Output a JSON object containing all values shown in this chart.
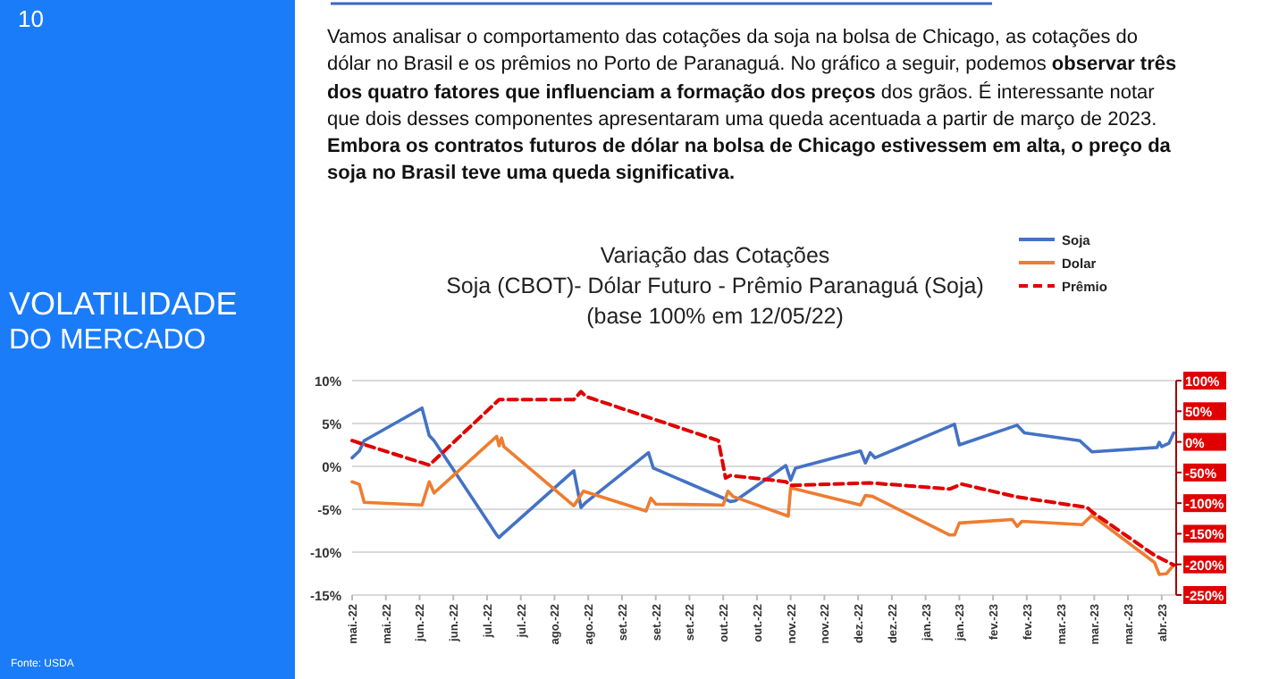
{
  "chart_data": {
    "type": "line",
    "title": "Variação das Cotações",
    "subtitle": "Soja (CBOT)- Dólar Futuro - Prêmio Paranaguá (Soja)\n(base 100% em 12/05/22)",
    "annotations": [
      "10",
      "VOLATILIDADE",
      "DO MERCADO",
      "Fonte: USDA",
      "Vamos analisar o comportamento das cotações da soja na bolsa de Chicago, as cotações do dólar no Brasil e os prêmios no Porto de Paranaguá. No gráfico a seguir, podemos ",
      "observar três dos quatro fatores que influenciam a formação dos preços",
      " dos grãos. É interessante notar que dois desses componentes apresentaram uma queda acentuada a partir de março de 2023. ",
      "Embora os contratos futuros de dólar na bolsa de Chicago estivessem em alta, o preço da soja no Brasil teve uma queda significativa."
    ],
    "xlim": [
      "2022-05-12",
      "2023-04-19"
    ],
    "xticks": [
      {
        "value": "2022-05-12",
        "label": "mai.-22"
      },
      {
        "value": "2022-05-26",
        "label": "mai.-22"
      },
      {
        "value": "2022-06-09",
        "label": "jun.-22"
      },
      {
        "value": "2022-06-23",
        "label": "jun.-22"
      },
      {
        "value": "2022-07-07",
        "label": "jul.-22"
      },
      {
        "value": "2022-07-21",
        "label": "jul.-22"
      },
      {
        "value": "2022-08-04",
        "label": "ago.-22"
      },
      {
        "value": "2022-08-18",
        "label": "ago.-22"
      },
      {
        "value": "2022-09-01",
        "label": "set.-22"
      },
      {
        "value": "2022-09-15",
        "label": "set.-22"
      },
      {
        "value": "2022-09-29",
        "label": "set.-22"
      },
      {
        "value": "2022-10-13",
        "label": "out.-22"
      },
      {
        "value": "2022-10-27",
        "label": "out.-22"
      },
      {
        "value": "2022-11-10",
        "label": "nov.-22"
      },
      {
        "value": "2022-11-24",
        "label": "nov.-22"
      },
      {
        "value": "2022-12-08",
        "label": "dez.-22"
      },
      {
        "value": "2022-12-22",
        "label": "dez.-22"
      },
      {
        "value": "2023-01-05",
        "label": "jan.-23"
      },
      {
        "value": "2023-01-19",
        "label": "jan.-23"
      },
      {
        "value": "2023-02-02",
        "label": "fev.-23"
      },
      {
        "value": "2023-02-16",
        "label": "fev.-23"
      },
      {
        "value": "2023-03-02",
        "label": "mar.-23"
      },
      {
        "value": "2023-03-16",
        "label": "mar.-23"
      },
      {
        "value": "2023-03-30",
        "label": "mar.-23"
      },
      {
        "value": "2023-04-13",
        "label": "abr.-23"
      }
    ],
    "ylim": [
      -15,
      10
    ],
    "yticks": [
      {
        "value": -15,
        "label": "-15%"
      },
      {
        "value": -10,
        "label": "-10%"
      },
      {
        "value": -5,
        "label": "-5%"
      },
      {
        "value": 0,
        "label": "0%"
      },
      {
        "value": 5,
        "label": "5%"
      },
      {
        "value": 10,
        "label": "10%"
      }
    ],
    "y2lim": [
      -250,
      100
    ],
    "y2ticks": [
      {
        "value": -250,
        "label": "-250%"
      },
      {
        "value": -200,
        "label": "-200%"
      },
      {
        "value": -150,
        "label": "-150%"
      },
      {
        "value": -100,
        "label": "-100%"
      },
      {
        "value": -50,
        "label": "-50%"
      },
      {
        "value": 0,
        "label": "0%"
      },
      {
        "value": 50,
        "label": "50%"
      },
      {
        "value": 100,
        "label": "100%"
      }
    ],
    "grid": "y",
    "legend": "top right",
    "marker": "none",
    "series": [
      {
        "name": "Soja",
        "color": "#4472c4",
        "line_style": "solid",
        "x": [
          "2022-05-12",
          "2022-05-15",
          "2022-05-17",
          "2022-06-10",
          "2022-06-13",
          "2022-06-15",
          "2022-07-11",
          "2022-07-12",
          "2022-07-13",
          "2022-08-12",
          "2022-08-15",
          "2022-08-17",
          "2022-09-12",
          "2022-09-14",
          "2022-10-13",
          "2022-10-16",
          "2022-10-18",
          "2022-11-08",
          "2022-11-10",
          "2022-11-12",
          "2022-12-09",
          "2022-12-11",
          "2022-12-13",
          "2022-12-15",
          "2023-01-17",
          "2023-01-19",
          "2023-02-12",
          "2023-02-15",
          "2023-03-10",
          "2023-03-15",
          "2023-04-11",
          "2023-04-12",
          "2023-04-13",
          "2023-04-16",
          "2023-04-18"
        ],
        "values": [
          1.0,
          1.8,
          3.0,
          6.8,
          3.6,
          3.0,
          -8.0,
          -8.3,
          -8.0,
          -0.5,
          -4.8,
          -4.2,
          1.6,
          -0.2,
          -3.7,
          -4.1,
          -4.0,
          0.1,
          -1.6,
          -0.2,
          1.8,
          0.4,
          1.6,
          1.0,
          4.9,
          2.5,
          4.8,
          3.9,
          3.0,
          1.7,
          2.2,
          2.8,
          2.3,
          2.7,
          3.9
        ]
      },
      {
        "name": "Dolar",
        "color": "#ed7d31",
        "line_style": "solid",
        "x": [
          "2022-05-12",
          "2022-05-15",
          "2022-05-17",
          "2022-06-10",
          "2022-06-13",
          "2022-06-15",
          "2022-07-11",
          "2022-07-12",
          "2022-07-13",
          "2022-07-14",
          "2022-08-12",
          "2022-08-16",
          "2022-09-11",
          "2022-09-13",
          "2022-09-15",
          "2022-10-13",
          "2022-10-15",
          "2022-10-17",
          "2022-11-08",
          "2022-11-09",
          "2022-11-10",
          "2022-12-09",
          "2022-12-11",
          "2022-12-14",
          "2023-01-15",
          "2023-01-17",
          "2023-01-19",
          "2023-02-10",
          "2023-02-12",
          "2023-02-14",
          "2023-03-11",
          "2023-03-15",
          "2023-04-10",
          "2023-04-12",
          "2023-04-15",
          "2023-04-18"
        ],
        "values": [
          -1.8,
          -2.1,
          -4.2,
          -4.5,
          -1.8,
          -3.1,
          3.5,
          2.4,
          3.3,
          2.3,
          -4.6,
          -2.9,
          -5.2,
          -3.7,
          -4.4,
          -4.5,
          -2.9,
          -3.5,
          -5.7,
          -5.8,
          -2.5,
          -4.5,
          -3.4,
          -3.5,
          -8.0,
          -8.0,
          -6.6,
          -6.2,
          -7.0,
          -6.4,
          -6.8,
          -5.7,
          -11.2,
          -12.6,
          -12.5,
          -11.5
        ]
      },
      {
        "name": "Prêmio",
        "color": "#e00000",
        "line_style": "dashed",
        "axis": "y2",
        "x": [
          "2022-05-12",
          "2022-06-13",
          "2022-07-12",
          "2022-08-12",
          "2022-08-15",
          "2022-08-17",
          "2022-10-11",
          "2022-10-14",
          "2022-10-16",
          "2022-11-08",
          "2022-11-10",
          "2022-12-13",
          "2023-01-15",
          "2023-01-20",
          "2023-02-12",
          "2023-03-13",
          "2023-03-15",
          "2023-04-10",
          "2023-04-14",
          "2023-04-18"
        ],
        "values": [
          2,
          -38,
          69,
          69,
          82,
          74,
          2,
          -59,
          -55,
          -65,
          -71,
          -67,
          -77,
          -69,
          -90,
          -107,
          -114,
          -185,
          -193,
          -201
        ]
      }
    ]
  }
}
